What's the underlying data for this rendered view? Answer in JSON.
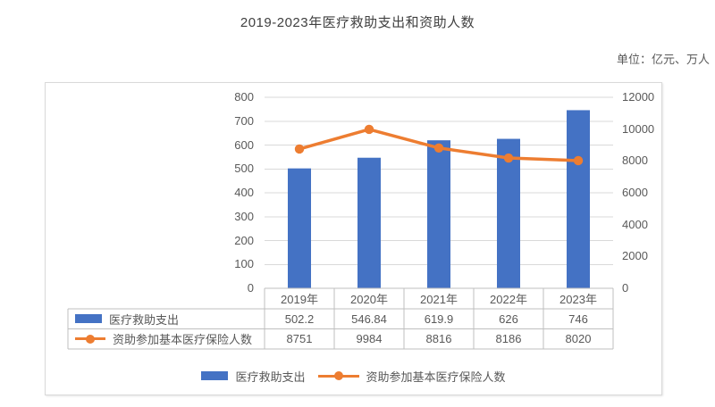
{
  "page": {
    "title": "2019-2023年医疗救助支出和资助人数",
    "unit_label": "单位：亿元、万人"
  },
  "chart_data": {
    "type": "bar",
    "subtype": "combo-bar-line-dual-axis",
    "title": "2019-2023年医疗救助支出和资助人数",
    "categories": [
      "2019年",
      "2020年",
      "2021年",
      "2022年",
      "2023年"
    ],
    "series": [
      {
        "name": "医疗救助支出",
        "type": "bar",
        "axis": "left",
        "color": "#4472C4",
        "values": [
          502.2,
          546.84,
          619.9,
          626,
          746
        ]
      },
      {
        "name": "资助参加基本医疗保险人数",
        "type": "line",
        "axis": "right",
        "color": "#ED7D31",
        "values": [
          8751,
          9984,
          8816,
          8186,
          8020
        ]
      }
    ],
    "left_axis": {
      "min": 0,
      "max": 800,
      "step": 100
    },
    "right_axis": {
      "min": 0,
      "max": 12000,
      "step": 2000
    },
    "grid": true,
    "grid_color": "#D9D9D9",
    "table_border_color": "#BFBFBF",
    "text_color": "#595959",
    "legend_position": "bottom",
    "data_table_visible": true
  }
}
